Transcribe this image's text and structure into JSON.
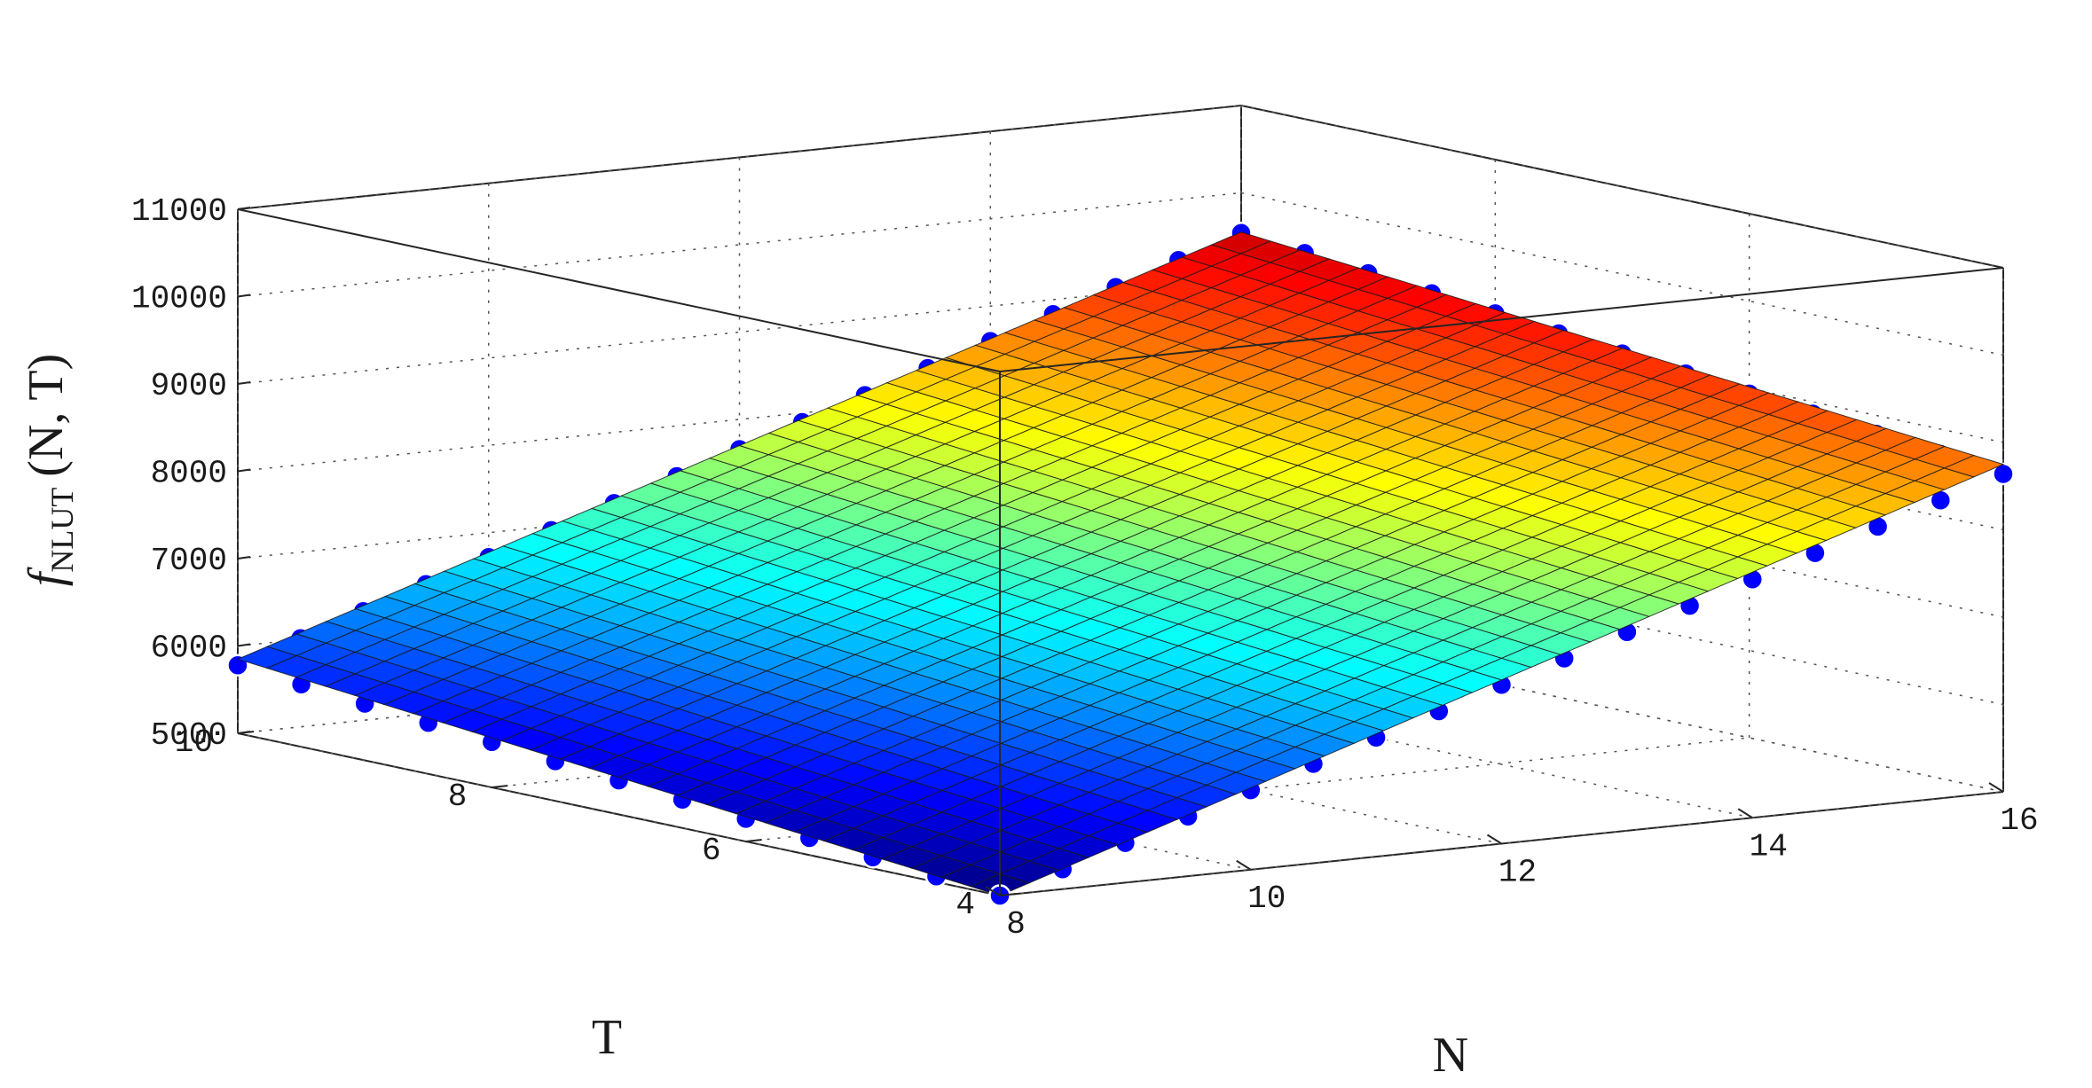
{
  "chart_data": {
    "type": "surface3d",
    "title": "",
    "xlabel": "N",
    "ylabel": "T",
    "zlabel": {
      "func": "f",
      "sub": "NLUT",
      "args": "(N, T)"
    },
    "xlim": [
      8,
      16
    ],
    "ylim": [
      4,
      10
    ],
    "zlim": [
      5000,
      11000
    ],
    "xticks": [
      "8",
      "10",
      "12",
      "14",
      "16"
    ],
    "yticks": [
      "4",
      "6",
      "8",
      "10"
    ],
    "zticks": [
      "5000",
      "6000",
      "7000",
      "8000",
      "9000",
      "10000",
      "11000"
    ],
    "grid": true,
    "colormap": "jet",
    "surface": {
      "description": "fitted plane",
      "z_at": {
        "N8_T10": 5850,
        "N8_T4": 5000,
        "N16_T4": 8750,
        "N16_T10": 9550
      },
      "mesh_n": 34,
      "mesh_t": 26
    },
    "points": {
      "name": "",
      "color": "#0000ff",
      "n_values": [
        8.0,
        8.5,
        9.0,
        9.5,
        10.0,
        10.5,
        11.0,
        11.5,
        12.0,
        12.5,
        13.0,
        13.5,
        14.0,
        14.5,
        15.0,
        15.5,
        16.0
      ],
      "t_values": [
        4.0,
        4.5,
        5.0,
        5.5,
        6.0,
        6.5,
        7.0,
        7.5,
        8.0,
        8.5,
        9.0,
        9.5,
        10.0
      ],
      "z_model": {
        "base": 5000,
        "per_N": 455,
        "per_T": 130,
        "per_NT": 2.5
      }
    }
  }
}
